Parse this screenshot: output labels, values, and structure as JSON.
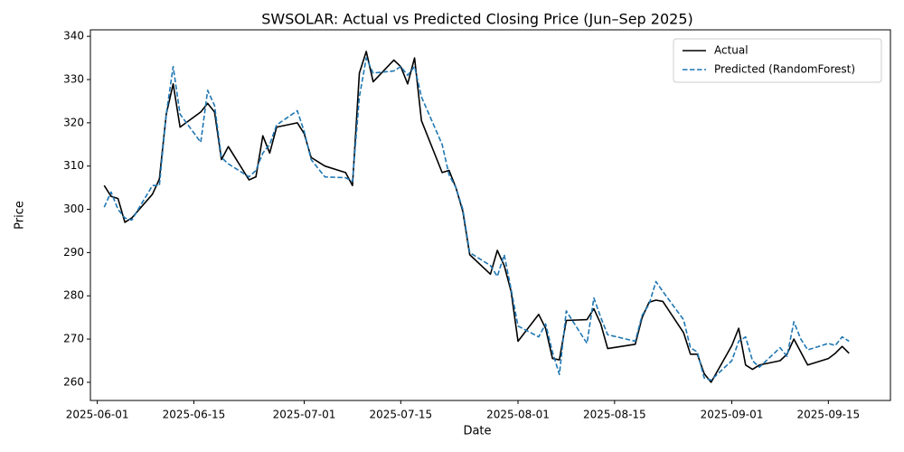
{
  "chart_data": {
    "type": "line",
    "title": "SWSOLAR: Actual vs Predicted Closing Price (Jun–Sep 2025)",
    "x_label": "Date",
    "y_label": "Price",
    "x": [
      "2025-06-02",
      "2025-06-03",
      "2025-06-04",
      "2025-06-05",
      "2025-06-06",
      "2025-06-09",
      "2025-06-10",
      "2025-06-11",
      "2025-06-12",
      "2025-06-13",
      "2025-06-16",
      "2025-06-17",
      "2025-06-18",
      "2025-06-19",
      "2025-06-20",
      "2025-06-23",
      "2025-06-24",
      "2025-06-25",
      "2025-06-26",
      "2025-06-27",
      "2025-06-30",
      "2025-07-01",
      "2025-07-02",
      "2025-07-03",
      "2025-07-04",
      "2025-07-07",
      "2025-07-08",
      "2025-07-09",
      "2025-07-10",
      "2025-07-11",
      "2025-07-14",
      "2025-07-15",
      "2025-07-16",
      "2025-07-17",
      "2025-07-18",
      "2025-07-21",
      "2025-07-22",
      "2025-07-23",
      "2025-07-24",
      "2025-07-25",
      "2025-07-28",
      "2025-07-29",
      "2025-07-30",
      "2025-07-31",
      "2025-08-01",
      "2025-08-04",
      "2025-08-05",
      "2025-08-06",
      "2025-08-07",
      "2025-08-08",
      "2025-08-11",
      "2025-08-12",
      "2025-08-13",
      "2025-08-14",
      "2025-08-18",
      "2025-08-19",
      "2025-08-20",
      "2025-08-21",
      "2025-08-22",
      "2025-08-25",
      "2025-08-26",
      "2025-08-27",
      "2025-08-28",
      "2025-08-29",
      "2025-09-01",
      "2025-09-02",
      "2025-09-03",
      "2025-09-04",
      "2025-09-05",
      "2025-09-08",
      "2025-09-09",
      "2025-09-10",
      "2025-09-11",
      "2025-09-12",
      "2025-09-15",
      "2025-09-16",
      "2025-09-17",
      "2025-09-18"
    ],
    "series": [
      {
        "name": "Actual",
        "color": "#000000",
        "dash": false,
        "values": [
          305.5,
          303,
          302.5,
          297,
          298,
          303.5,
          307,
          322,
          329,
          319,
          322.5,
          324.5,
          322.5,
          311.5,
          314.5,
          306.8,
          307.5,
          317,
          313,
          319,
          320,
          317.5,
          312,
          311,
          310,
          308.5,
          305.5,
          331.5,
          336.5,
          329.5,
          334.5,
          333,
          329,
          335,
          320.5,
          308.5,
          309,
          305,
          299.5,
          289.5,
          285,
          290.5,
          287,
          281,
          269.5,
          275.7,
          272.5,
          265.5,
          265.2,
          274.3,
          274.5,
          277,
          273.5,
          267.8,
          268.8,
          275,
          278.5,
          279,
          278.7,
          271.5,
          266.5,
          266.5,
          262,
          260,
          268.5,
          272.5,
          264,
          263,
          264,
          265,
          266.5,
          270,
          267,
          264,
          265.5,
          266.7,
          268.3,
          266.7
        ]
      },
      {
        "name": "Predicted (RandomForest)",
        "color": "#1f77b4",
        "dash": true,
        "values": [
          300.5,
          304,
          300,
          298,
          297.5,
          305.5,
          305.5,
          322,
          333,
          322,
          315.5,
          327.5,
          324,
          312,
          310.5,
          307.5,
          309,
          313,
          315,
          319.5,
          322.8,
          318,
          311.5,
          309.5,
          307.5,
          307.3,
          306.5,
          326,
          335,
          331.5,
          332,
          333,
          331,
          333,
          326,
          315,
          308,
          305,
          300,
          290,
          287,
          284.5,
          289.5,
          281.5,
          273,
          270.5,
          273.5,
          267,
          261.8,
          276.5,
          269,
          279.5,
          275,
          271,
          269.5,
          275.5,
          278,
          283.3,
          281,
          274.5,
          268,
          267,
          261,
          260.5,
          265,
          269.5,
          270.5,
          265,
          263.5,
          268,
          266,
          274,
          270,
          267.5,
          269,
          268.5,
          270.5,
          269.5
        ]
      }
    ],
    "xlim": [
      "2025-05-31",
      "2025-09-24"
    ],
    "xticks": [
      "2025-06-01",
      "2025-06-15",
      "2025-07-01",
      "2025-07-15",
      "2025-08-01",
      "2025-08-15",
      "2025-09-01",
      "2025-09-15"
    ],
    "ylim": [
      255.8,
      341.5
    ],
    "yticks": [
      260,
      270,
      280,
      290,
      300,
      310,
      320,
      330,
      340
    ],
    "grid": false,
    "legend": "upper right"
  }
}
